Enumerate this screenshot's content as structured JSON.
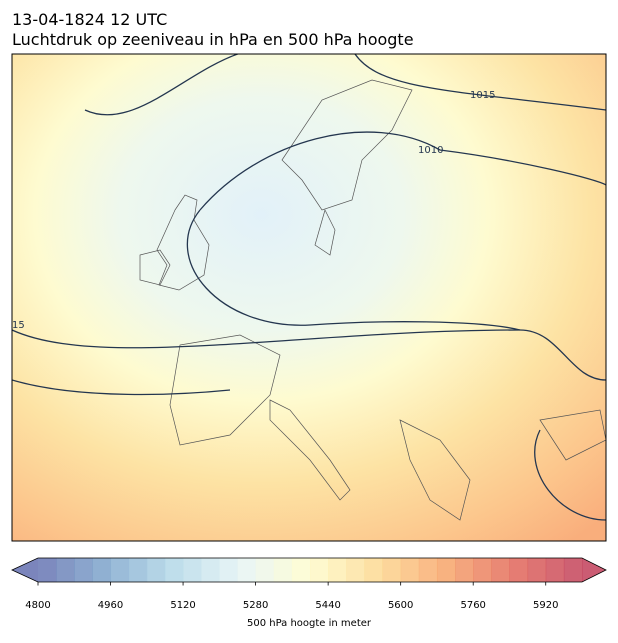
{
  "header": {
    "title": "13-04-1824 12 UTC",
    "subtitle": "Luchtdruk op zeeniveau in hPa en 500 hPa hoogte"
  },
  "map": {
    "contour_labels": [
      "1015",
      "1010",
      "15"
    ]
  },
  "colorbar": {
    "label": "500 hPa hoogte in meter",
    "lim": [
      4800,
      6000
    ],
    "step": 40,
    "ticks": [
      4800,
      4960,
      5120,
      5280,
      5440,
      5600,
      5760,
      5920
    ],
    "extend": "both",
    "colors": [
      "#6470b0",
      "#7ea6cc",
      "#b4d8e8",
      "#e6f4f4",
      "#fefccc",
      "#fdd890",
      "#f7a46a",
      "#e2685a",
      "#c2405a"
    ]
  }
}
